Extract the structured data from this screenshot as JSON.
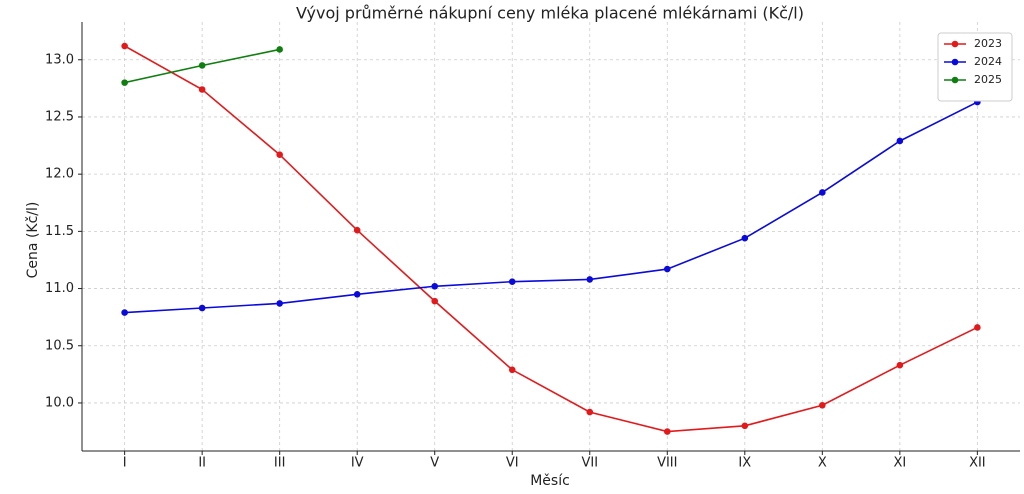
{
  "chart_data": {
    "type": "line",
    "title": "Vývoj průměrné nákupní ceny mléka placené mlékárnami (Kč/l)",
    "x_label": "Měsíc",
    "y_label": "Cena (Kč/l)",
    "categories": [
      "I",
      "II",
      "III",
      "IV",
      "V",
      "VI",
      "VII",
      "VIII",
      "IX",
      "X",
      "XI",
      "XII"
    ],
    "series": [
      {
        "name": "2023",
        "color": "#e31a1c",
        "values": [
          13.12,
          12.74,
          12.17,
          11.51,
          10.89,
          10.29,
          9.92,
          9.75,
          9.8,
          9.98,
          10.33,
          10.66
        ]
      },
      {
        "name": "2024",
        "color": "#0a0adc",
        "values": [
          10.79,
          10.83,
          10.87,
          10.95,
          11.02,
          11.06,
          11.08,
          11.17,
          11.44,
          11.84,
          12.29,
          12.63
        ]
      },
      {
        "name": "2025",
        "color": "#0f7f0f",
        "values": [
          12.8,
          12.95,
          13.09,
          null,
          null,
          null,
          null,
          null,
          null,
          null,
          null,
          null
        ]
      }
    ],
    "ylim": [
      9.58,
      13.33
    ],
    "yticks": [
      {
        "value": 10.0,
        "label": "10.0"
      },
      10.5,
      {
        "value": 11.0,
        "label": "11.0"
      },
      11.5,
      {
        "value": 12.0,
        "label": "12.0"
      },
      12.5,
      {
        "value": 13.0,
        "label": "13.0"
      }
    ],
    "grid": true,
    "legend": "upper right"
  }
}
